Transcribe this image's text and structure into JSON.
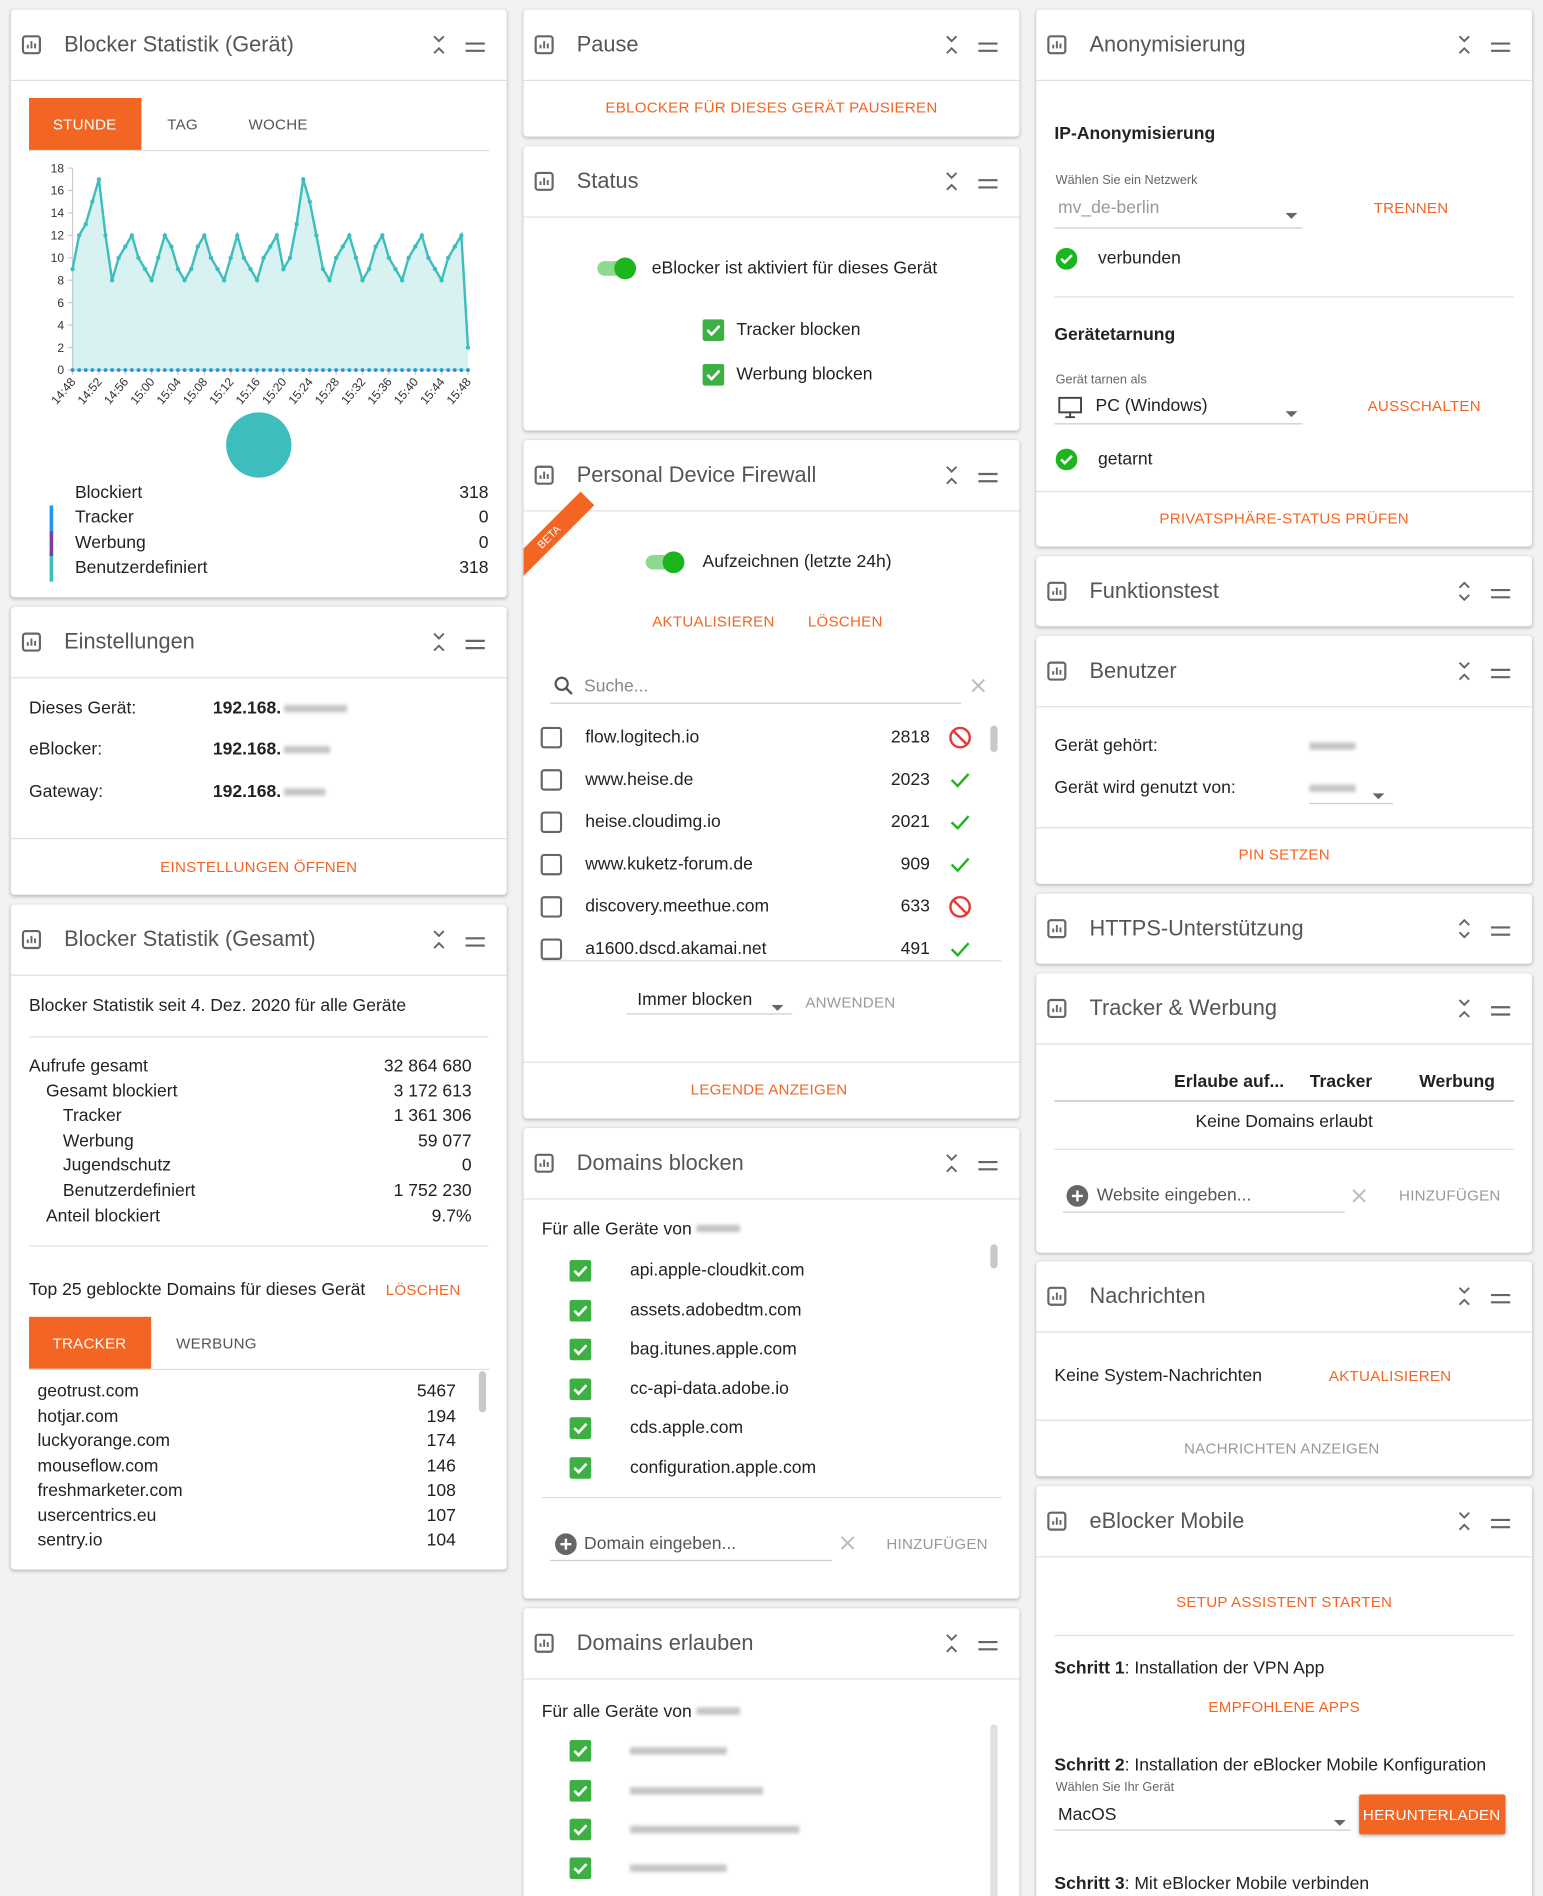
{
  "chart_data": {
    "type": "line",
    "categories": [
      "14:48",
      null,
      null,
      null,
      "14:52",
      null,
      null,
      null,
      "14:56",
      null,
      null,
      null,
      "15:00",
      null,
      null,
      null,
      "15:04",
      null,
      null,
      null,
      "15:08",
      null,
      null,
      null,
      "15:12",
      null,
      null,
      null,
      "15:16",
      null,
      null,
      null,
      "15:20",
      null,
      null,
      null,
      "15:24",
      null,
      null,
      null,
      "15:28",
      null,
      null,
      null,
      "15:32",
      null,
      null,
      null,
      "15:36",
      null,
      null,
      null,
      "15:40",
      null,
      null,
      null,
      "15:44",
      null,
      null,
      null,
      "15:48"
    ],
    "series": [
      {
        "color": "#3dbdbd",
        "area": true,
        "values": [
          9,
          12,
          13,
          15,
          17,
          12,
          8,
          10,
          11,
          12,
          10,
          9,
          8,
          10,
          12,
          11,
          9,
          8,
          9,
          11,
          12,
          10,
          9,
          8,
          10,
          12,
          10,
          9,
          8,
          10,
          11,
          12,
          9,
          10,
          13,
          17,
          15,
          12,
          9,
          8,
          10,
          11,
          12,
          10,
          8,
          9,
          11,
          12,
          10,
          9,
          8,
          10,
          11,
          12,
          10,
          9,
          8,
          10,
          11,
          12,
          2
        ]
      },
      {
        "color": "#1e9be0",
        "area": false,
        "values": [
          0,
          0,
          0,
          0,
          0,
          0,
          0,
          0,
          0,
          0,
          0,
          0,
          0,
          0,
          0,
          0,
          0,
          0,
          0,
          0,
          0,
          0,
          0,
          0,
          0,
          0,
          0,
          0,
          0,
          0,
          0,
          0,
          0,
          0,
          0,
          0,
          0,
          0,
          0,
          0,
          0,
          0,
          0,
          0,
          0,
          0,
          0,
          0,
          0,
          0,
          0,
          0,
          0,
          0,
          0,
          0,
          0,
          0,
          0,
          0,
          0
        ]
      }
    ],
    "ylim": [
      0,
      18
    ],
    "yticks": [
      0,
      2,
      4,
      6,
      8,
      10,
      12,
      14,
      16,
      18
    ]
  },
  "device_stats": {
    "title": "Blocker Statistik (Gerät)",
    "tabs": [
      "STUNDE",
      "TAG",
      "WOCHE"
    ],
    "legend": [
      {
        "name": "Blockiert",
        "value": 318
      },
      {
        "name": "Tracker",
        "value": 0,
        "color": "#2196f3"
      },
      {
        "name": "Werbung",
        "value": 0,
        "color": "#7b3fa0"
      },
      {
        "name": "Benutzerdefiniert",
        "value": 318,
        "color": "#3dbdbd"
      }
    ]
  },
  "settings": {
    "title": "Einstellungen",
    "rows": [
      {
        "label": "Dieses Gerät:",
        "value": "192.168."
      },
      {
        "label": "eBlocker:",
        "value": "192.168."
      },
      {
        "label": "Gateway:",
        "value": "192.168."
      }
    ],
    "action": "EINSTELLUNGEN ÖFFNEN"
  },
  "total_stats": {
    "title": "Blocker Statistik (Gesamt)",
    "since": "Blocker Statistik seit 4. Dez. 2020 für alle Geräte",
    "rows": [
      {
        "label": "Aufrufe gesamt",
        "value": "32 864 680"
      },
      {
        "label": "Gesamt blockiert",
        "value": "3 172 613"
      },
      {
        "label": "Tracker",
        "value": "1 361 306"
      },
      {
        "label": "Werbung",
        "value": "59 077"
      },
      {
        "label": "Jugendschutz",
        "value": "0"
      },
      {
        "label": "Benutzerdefiniert",
        "value": "1 752 230"
      },
      {
        "label": "Anteil blockiert",
        "value": "9.7%"
      }
    ],
    "top_title": "Top 25 geblockte Domains für dieses Gerät",
    "top_action": "LÖSCHEN",
    "tabs": [
      "TRACKER",
      "WERBUNG"
    ],
    "domains": [
      {
        "name": "geotrust.com",
        "count": 5467
      },
      {
        "name": "hotjar.com",
        "count": 194
      },
      {
        "name": "luckyorange.com",
        "count": 174
      },
      {
        "name": "mouseflow.com",
        "count": 146
      },
      {
        "name": "freshmarketer.com",
        "count": 108
      },
      {
        "name": "usercentrics.eu",
        "count": 107
      },
      {
        "name": "sentry.io",
        "count": 104
      }
    ]
  },
  "pause": {
    "title": "Pause",
    "action": "EBLOCKER FÜR DIESES GERÄT PAUSIEREN"
  },
  "status": {
    "title": "Status",
    "toggle": "eBlocker ist aktiviert für dieses Gerät",
    "options": [
      "Tracker blocken",
      "Werbung blocken"
    ]
  },
  "firewall": {
    "title": "Personal Device Firewall",
    "badge": "BETA",
    "toggle": "Aufzeichnen (letzte 24h)",
    "actions": [
      "AKTUALISIEREN",
      "LÖSCHEN"
    ],
    "search": "Suche...",
    "rows": [
      {
        "domain": "flow.logitech.io",
        "count": 2818,
        "blocked": true
      },
      {
        "domain": "www.heise.de",
        "count": 2023,
        "blocked": false
      },
      {
        "domain": "heise.cloudimg.io",
        "count": 2021,
        "blocked": false
      },
      {
        "domain": "www.kuketz-forum.de",
        "count": 909,
        "blocked": false
      },
      {
        "domain": "discovery.meethue.com",
        "count": 633,
        "blocked": true
      },
      {
        "domain": "a1600.dscd.akamai.net",
        "count": 491,
        "blocked": false
      }
    ],
    "rule": "Immer blocken",
    "apply": "ANWENDEN",
    "legend": "LEGENDE ANZEIGEN"
  },
  "block": {
    "title": "Domains blocken",
    "scope": "Für alle Geräte von",
    "domains": [
      "api.apple-cloudkit.com",
      "assets.adobedtm.com",
      "bag.itunes.apple.com",
      "cc-api-data.adobe.io",
      "cds.apple.com",
      "configuration.apple.com"
    ],
    "input": "Domain eingeben...",
    "add": "HINZUFÜGEN"
  },
  "allow": {
    "title": "Domains erlauben",
    "scope": "Für alle Geräte von"
  },
  "anon": {
    "title": "Anonymisierung",
    "ip_title": "IP-Anonymisierung",
    "network_label": "Wählen Sie ein Netzwerk",
    "network": "mv_de-berlin",
    "network_action": "TRENNEN",
    "network_status": "verbunden",
    "cloak_title": "Gerätetarnung",
    "cloak_label": "Gerät tarnen als",
    "cloak": "PC (Windows)",
    "cloak_action": "AUSSCHALTEN",
    "cloak_status": "getarnt",
    "action": "PRIVATSPHÄRE-STATUS PRÜFEN"
  },
  "test": {
    "title": "Funktionstest"
  },
  "users": {
    "title": "Benutzer",
    "owner": "Gerät gehört:",
    "used_by": "Gerät wird genutzt von:",
    "action": "PIN SETZEN"
  },
  "https": {
    "title": "HTTPS-Unterstützung"
  },
  "trackers": {
    "title": "Tracker & Werbung",
    "columns": [
      "Erlaube auf...",
      "Tracker",
      "Werbung"
    ],
    "empty": "Keine Domains erlaubt",
    "input": "Website eingeben...",
    "add": "HINZUFÜGEN"
  },
  "messages": {
    "title": "Nachrichten",
    "empty": "Keine System-Nachrichten",
    "refresh": "AKTUALISIEREN",
    "action": "NACHRICHTEN ANZEIGEN"
  },
  "mobile": {
    "title": "eBlocker Mobile",
    "setup": "SETUP ASSISTENT STARTEN",
    "steps": [
      {
        "label": "Schritt 1",
        "text": ": Installation der VPN App"
      },
      {
        "label": "Schritt 2",
        "text": ": Installation der eBlocker Mobile Konfiguration"
      },
      {
        "label": "Schritt 3",
        "text": ": Mit eBlocker Mobile verbinden"
      }
    ],
    "apps": "EMPFOHLENE APPS",
    "device_label": "Wählen Sie Ihr Gerät",
    "device": "MacOS",
    "download": "HERUNTERLADEN"
  }
}
